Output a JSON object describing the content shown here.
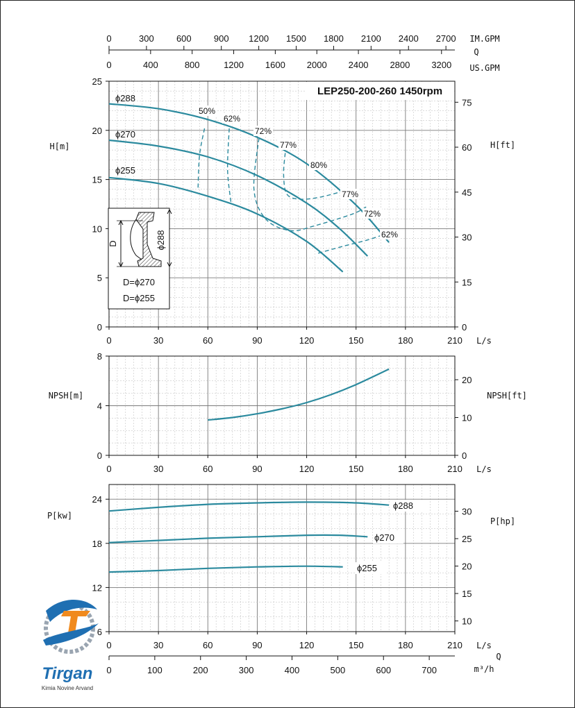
{
  "chart_data": [
    {
      "type": "line",
      "id": "head",
      "title": "LEP250-200-260 1450rpm",
      "ylabel": "H[m]",
      "ylabel_right": "H[ft]",
      "xunit": "L/s",
      "xlim": [
        0,
        210
      ],
      "ylim": [
        0,
        25
      ],
      "x_ticks": [
        "0",
        "30",
        "60",
        "90",
        "120",
        "150",
        "180",
        "210"
      ],
      "y_ticks": [
        "0",
        "5",
        "10",
        "15",
        "20",
        "25"
      ],
      "y2_ticks": [
        "0",
        "15",
        "30",
        "45",
        "60",
        "75"
      ],
      "y2_scale": 3.2808,
      "top_axes": [
        {
          "unit": "IM.GPM",
          "factor": 13.198,
          "ticks": [
            "0",
            "300",
            "600",
            "900",
            "1200",
            "1500",
            "1800",
            "2100",
            "2400",
            "2700"
          ]
        },
        {
          "unit": "US.GPM",
          "factor": 15.85,
          "ticks": [
            "0",
            "400",
            "800",
            "1200",
            "1600",
            "2000",
            "2400",
            "2800",
            "3200"
          ]
        }
      ],
      "q_label": "Q",
      "series": [
        {
          "name": "ϕ288",
          "x": [
            0,
            30,
            60,
            90,
            120,
            150,
            170
          ],
          "y": [
            22.7,
            22.2,
            21.1,
            19.3,
            16.6,
            12.4,
            8.6
          ]
        },
        {
          "name": "ϕ270",
          "x": [
            0,
            30,
            60,
            90,
            120,
            140,
            157
          ],
          "y": [
            19.0,
            18.4,
            17.3,
            15.4,
            12.6,
            10.0,
            7.2
          ]
        },
        {
          "name": "ϕ255",
          "x": [
            0,
            30,
            60,
            90,
            120,
            142
          ],
          "y": [
            15.2,
            14.6,
            13.3,
            11.5,
            8.7,
            5.6
          ]
        }
      ],
      "efficiency": [
        {
          "label": "50%",
          "pts": [
            [
              58,
              20.2
            ],
            [
              55,
              17.5
            ],
            [
              54,
              14
            ]
          ]
        },
        {
          "label": "62%",
          "pts": [
            [
              73,
              20.2
            ],
            [
              72,
              16
            ],
            [
              74,
              12.7
            ]
          ]
        },
        {
          "label": "72%",
          "pts": [
            [
              91,
              19.2
            ],
            [
              88,
              14
            ],
            [
              95,
              11
            ],
            [
              110,
              9.8
            ],
            [
              125,
              10.3
            ],
            [
              148,
              11.5
            ],
            [
              157,
              12.3
            ]
          ]
        },
        {
          "label": "77%",
          "pts": [
            [
              107,
              17.7
            ],
            [
              106,
              15.5
            ],
            [
              108,
              13.5
            ],
            [
              116,
              13
            ],
            [
              128,
              13.2
            ],
            [
              142,
              13.8
            ]
          ]
        },
        {
          "label": "80%",
          "pts": []
        },
        {
          "label": "77%",
          "pts": []
        },
        {
          "label": "72%",
          "pts": []
        },
        {
          "label": "62%",
          "pts": [
            [
              127,
              7.5
            ],
            [
              142,
              8.2
            ],
            [
              158,
              8.9
            ],
            [
              170,
              9.6
            ]
          ]
        }
      ],
      "inset": {
        "dim_label": "D",
        "size_label": "ϕ288",
        "lines": [
          "D=ϕ270",
          "D=ϕ255"
        ]
      }
    },
    {
      "type": "line",
      "id": "npsh",
      "ylabel": "NPSH[m]",
      "ylabel_right": "NPSH[ft]",
      "xunit": "L/s",
      "xlim": [
        0,
        210
      ],
      "ylim": [
        0,
        8
      ],
      "x_ticks": [
        "0",
        "30",
        "60",
        "90",
        "120",
        "150",
        "180",
        "210"
      ],
      "y_ticks": [
        "0",
        "4",
        "8"
      ],
      "y2_ticks": [
        "0",
        "10",
        "20"
      ],
      "y2_scale": 3.2808,
      "series": [
        {
          "name": "",
          "x": [
            60,
            75,
            90,
            105,
            120,
            135,
            150,
            170
          ],
          "y": [
            2.85,
            3.05,
            3.35,
            3.75,
            4.25,
            4.9,
            5.7,
            6.95
          ]
        }
      ]
    },
    {
      "type": "line",
      "id": "power",
      "ylabel": "P[kw]",
      "ylabel_right": "P[hp]",
      "xunit": "L/s",
      "xlim": [
        0,
        210
      ],
      "ylim": [
        6,
        26
      ],
      "x_ticks": [
        "0",
        "30",
        "60",
        "90",
        "120",
        "150",
        "180",
        "210"
      ],
      "y_ticks": [
        "6",
        "12",
        "18",
        "24"
      ],
      "y2_ticks": [
        "10",
        "15",
        "20",
        "25",
        "30"
      ],
      "y2_scale": 1.341,
      "m3h_unit": "m³/h",
      "m3h_ticks": [
        "0",
        "100",
        "200",
        "300",
        "400",
        "500",
        "600",
        "700"
      ],
      "m3h_factor": 3.6,
      "q_label": "Q",
      "series": [
        {
          "name": "ϕ288",
          "x": [
            0,
            30,
            60,
            90,
            120,
            150,
            170
          ],
          "y": [
            22.4,
            22.9,
            23.3,
            23.5,
            23.6,
            23.5,
            23.2
          ]
        },
        {
          "name": "ϕ270",
          "x": [
            0,
            30,
            60,
            90,
            120,
            140,
            157
          ],
          "y": [
            18.1,
            18.4,
            18.7,
            18.9,
            19.1,
            19.1,
            18.9
          ]
        },
        {
          "name": "ϕ255",
          "x": [
            0,
            30,
            60,
            90,
            120,
            142
          ],
          "y": [
            14.1,
            14.3,
            14.6,
            14.8,
            14.9,
            14.8
          ]
        }
      ]
    }
  ],
  "brand": {
    "logo_text": "Tirgan",
    "subtitle": "Kimia Novine Arvand"
  },
  "colors": {
    "curve": "#2b8a9e",
    "grid_major": "#7a7a7a",
    "grid_minor": "#b8b8b8",
    "axis": "#111111",
    "logo_orange": "#f08a1e",
    "logo_blue": "#1f6fb2"
  }
}
